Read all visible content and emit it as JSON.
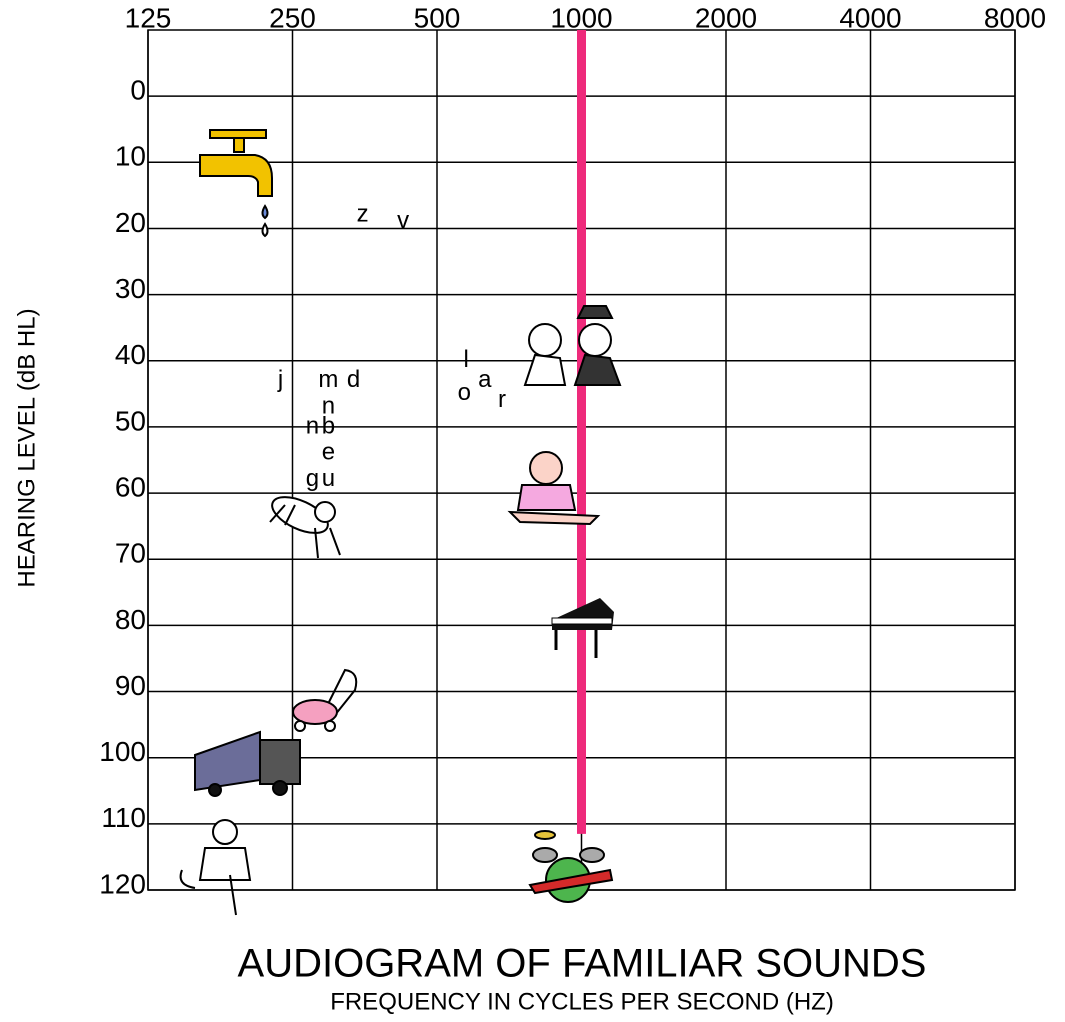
{
  "chart_data": {
    "type": "scatter",
    "title": "AUDIOGRAM OF FAMILIAR SOUNDS",
    "xlabel": "FREQUENCY IN CYCLES PER SECOND (HZ)",
    "ylabel": "HEARING LEVEL (dB HL)",
    "xscale": "log",
    "xlim": [
      125,
      8000
    ],
    "xticks": [
      125,
      250,
      500,
      1000,
      2000,
      4000,
      8000
    ],
    "ylim": [
      -10,
      120
    ],
    "yticks": [
      0,
      10,
      20,
      30,
      40,
      50,
      60,
      70,
      80,
      90,
      100,
      110,
      120
    ],
    "yreversed": true,
    "grid": true,
    "highlight": 1000,
    "highlight_color": "#ee2a7b",
    "color": "#000000",
    "points": [
      {
        "label": "z",
        "x": 350,
        "y": 18
      },
      {
        "label": "v",
        "x": 425,
        "y": 19
      },
      {
        "label": "j",
        "x": 236,
        "y": 43
      },
      {
        "label": "m",
        "x": 297,
        "y": 43
      },
      {
        "label": "d",
        "x": 335,
        "y": 43
      },
      {
        "label": "n",
        "x": 297,
        "y": 47
      },
      {
        "label": "n",
        "x": 275,
        "y": 50
      },
      {
        "label": "b",
        "x": 297,
        "y": 50
      },
      {
        "label": "e",
        "x": 297,
        "y": 54
      },
      {
        "label": "g",
        "x": 275,
        "y": 58
      },
      {
        "label": "u",
        "x": 297,
        "y": 58
      },
      {
        "label": "l",
        "x": 575,
        "y": 40
      },
      {
        "label": "o",
        "x": 570,
        "y": 45
      },
      {
        "label": "a",
        "x": 629,
        "y": 43
      },
      {
        "label": "r",
        "x": 683,
        "y": 46
      }
    ]
  }
}
